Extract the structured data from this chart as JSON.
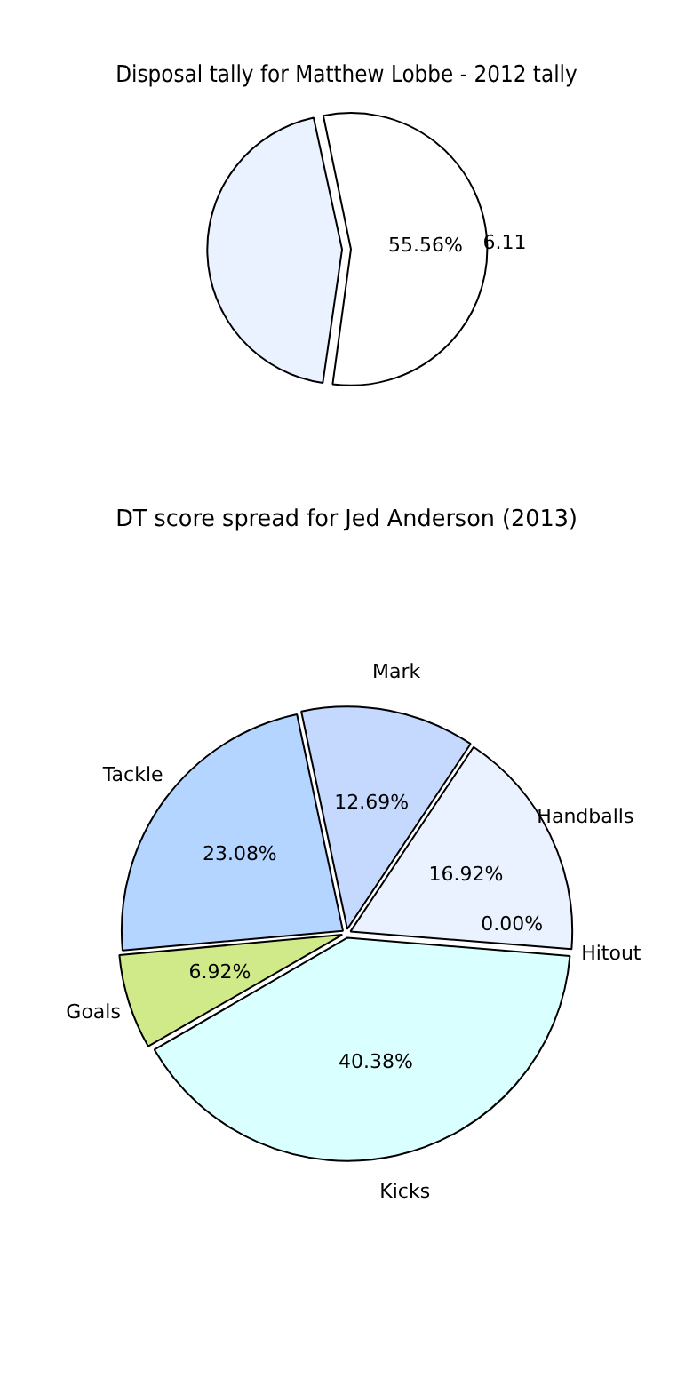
{
  "chart_data": [
    {
      "type": "pie",
      "title": "Disposal tally for Matthew Lobbe - 2012 tally",
      "categories": [
        "6.11",
        null
      ],
      "values": [
        55.56,
        44.44
      ],
      "colors": [
        "#ffffff",
        "#eaf1ff"
      ],
      "value_labels": [
        "55.56%",
        null
      ],
      "legend": false
    },
    {
      "type": "pie",
      "title": "DT score spread for Jed Anderson (2013)",
      "categories": [
        "Mark",
        "Handballs",
        "Hitout",
        "Kicks",
        "Goals",
        "Tackle"
      ],
      "values": [
        12.69,
        16.92,
        0,
        40.38,
        6.92,
        23.08
      ],
      "colors": [
        "#c5d9ff",
        "#eaf1ff",
        "#f2f2f2",
        "#d9ffff",
        "#d0ea8a",
        "#b3d5ff"
      ],
      "value_labels": [
        "12.69%",
        "16.92%",
        "0.00%",
        "40.38%",
        "6.92%",
        "23.08%"
      ],
      "legend": false
    }
  ]
}
